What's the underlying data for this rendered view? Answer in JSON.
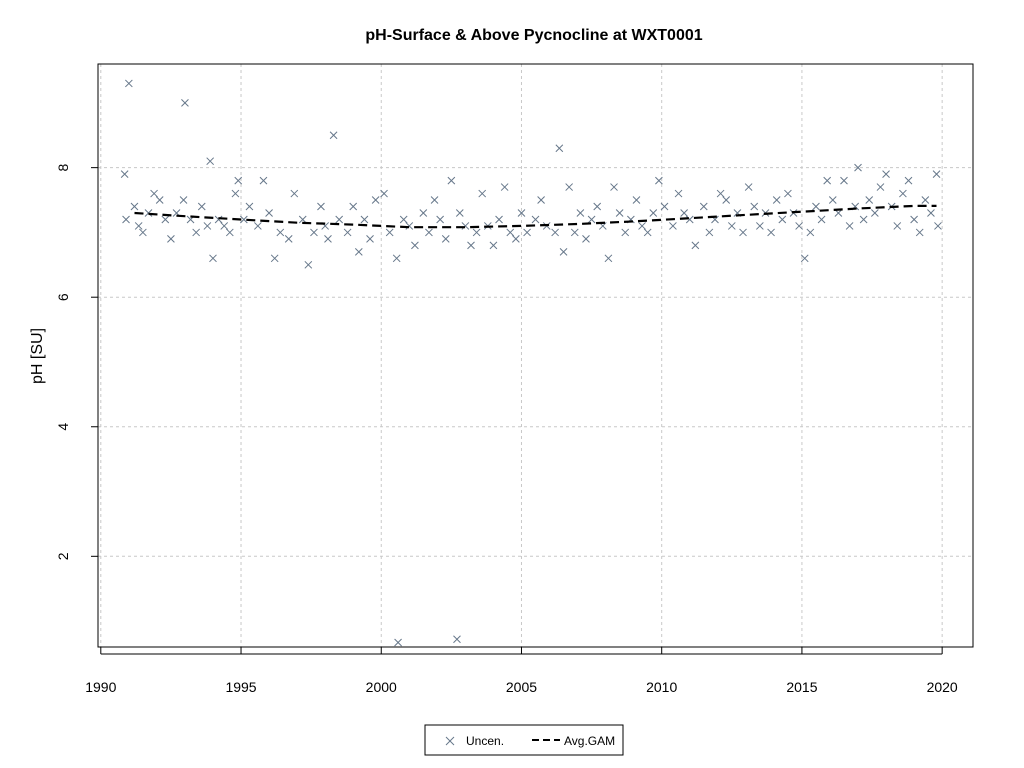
{
  "chart_data": {
    "type": "scatter",
    "title": "pH-Surface & Above Pycnocline at WXT0001",
    "xlabel": "",
    "ylabel": "pH [SU]",
    "xlim": [
      1989.9,
      2021.1
    ],
    "ylim": [
      0.6,
      9.6
    ],
    "x_ticks": [
      1990,
      1995,
      2000,
      2005,
      2010,
      2015,
      2020
    ],
    "y_ticks": [
      2,
      4,
      6,
      8
    ],
    "grid": true,
    "legend_position": "bottom-center",
    "colors": {
      "points": "#66778a",
      "gam": "#000000",
      "grid": "#c8c8c8"
    },
    "series": [
      {
        "name": "Uncen.",
        "marker": "x",
        "x": [
          1990.85,
          1990.9,
          1991.0,
          1991.2,
          1991.35,
          1991.5,
          1991.7,
          1991.9,
          1992.1,
          1992.3,
          1992.5,
          1992.7,
          1992.95,
          1993.0,
          1993.2,
          1993.4,
          1993.6,
          1993.8,
          1993.9,
          1994.0,
          1994.2,
          1994.4,
          1994.6,
          1994.8,
          1994.9,
          1995.1,
          1995.3,
          1995.6,
          1995.8,
          1996.0,
          1996.2,
          1996.4,
          1996.7,
          1996.9,
          1997.2,
          1997.4,
          1997.6,
          1997.85,
          1998.0,
          1998.1,
          1998.3,
          1998.5,
          1998.8,
          1999.0,
          1999.2,
          1999.4,
          1999.6,
          1999.8,
          2000.1,
          2000.3,
          2000.55,
          2000.6,
          2000.8,
          2001.0,
          2001.2,
          2001.5,
          2001.7,
          2001.9,
          2002.1,
          2002.3,
          2002.5,
          2002.7,
          2002.8,
          2003.0,
          2003.2,
          2003.4,
          2003.6,
          2003.8,
          2004.0,
          2004.2,
          2004.4,
          2004.6,
          2004.8,
          2005.0,
          2005.2,
          2005.5,
          2005.7,
          2005.9,
          2006.2,
          2006.35,
          2006.5,
          2006.7,
          2006.9,
          2007.1,
          2007.3,
          2007.5,
          2007.7,
          2007.9,
          2008.1,
          2008.3,
          2008.5,
          2008.7,
          2008.9,
          2009.1,
          2009.3,
          2009.5,
          2009.7,
          2009.9,
          2010.1,
          2010.4,
          2010.6,
          2010.8,
          2011.0,
          2011.2,
          2011.5,
          2011.7,
          2011.9,
          2012.1,
          2012.3,
          2012.5,
          2012.7,
          2012.9,
          2013.1,
          2013.3,
          2013.5,
          2013.7,
          2013.9,
          2014.1,
          2014.3,
          2014.5,
          2014.7,
          2014.9,
          2015.1,
          2015.3,
          2015.5,
          2015.7,
          2015.9,
          2016.1,
          2016.3,
          2016.5,
          2016.7,
          2016.9,
          2017.0,
          2017.2,
          2017.4,
          2017.6,
          2017.8,
          2018.0,
          2018.2,
          2018.4,
          2018.6,
          2018.8,
          2019.0,
          2019.2,
          2019.4,
          2019.6,
          2019.8,
          2019.85
        ],
        "y": [
          7.9,
          7.2,
          9.3,
          7.4,
          7.1,
          7.0,
          7.3,
          7.6,
          7.5,
          7.2,
          6.9,
          7.3,
          7.5,
          9.0,
          7.2,
          7.0,
          7.4,
          7.1,
          8.1,
          6.6,
          7.2,
          7.1,
          7.0,
          7.6,
          7.8,
          7.2,
          7.4,
          7.1,
          7.8,
          7.3,
          6.6,
          7.0,
          6.9,
          7.6,
          7.2,
          6.5,
          7.0,
          7.4,
          7.1,
          6.9,
          8.5,
          7.2,
          7.0,
          7.4,
          6.7,
          7.2,
          6.9,
          7.5,
          7.6,
          7.0,
          6.6,
          0.67,
          7.2,
          7.1,
          6.8,
          7.3,
          7.0,
          7.5,
          7.2,
          6.9,
          7.8,
          0.72,
          7.3,
          7.1,
          6.8,
          7.0,
          7.6,
          7.1,
          6.8,
          7.2,
          7.7,
          7.0,
          6.9,
          7.3,
          7.0,
          7.2,
          7.5,
          7.1,
          7.0,
          8.3,
          6.7,
          7.7,
          7.0,
          7.3,
          6.9,
          7.2,
          7.4,
          7.1,
          6.6,
          7.7,
          7.3,
          7.0,
          7.2,
          7.5,
          7.1,
          7.0,
          7.3,
          7.8,
          7.4,
          7.1,
          7.6,
          7.3,
          7.2,
          6.8,
          7.4,
          7.0,
          7.2,
          7.6,
          7.5,
          7.1,
          7.3,
          7.0,
          7.7,
          7.4,
          7.1,
          7.3,
          7.0,
          7.5,
          7.2,
          7.6,
          7.3,
          7.1,
          6.6,
          7.0,
          7.4,
          7.2,
          7.8,
          7.5,
          7.3,
          7.8,
          7.1,
          7.4,
          8.0,
          7.2,
          7.5,
          7.3,
          7.7,
          7.9,
          7.4,
          7.1,
          7.6,
          7.8,
          7.2,
          7.0,
          7.5,
          7.3,
          7.9,
          7.1
        ]
      },
      {
        "name": "Avg.GAM",
        "line": "dashed",
        "x": [
          1991.2,
          1993.0,
          1995.0,
          1997.0,
          1999.0,
          2001.0,
          2003.0,
          2005.0,
          2007.0,
          2009.0,
          2011.0,
          2013.0,
          2015.0,
          2017.0,
          2019.0,
          2019.8
        ],
        "y": [
          7.3,
          7.25,
          7.2,
          7.15,
          7.12,
          7.08,
          7.08,
          7.1,
          7.13,
          7.17,
          7.22,
          7.27,
          7.32,
          7.37,
          7.41,
          7.41
        ]
      }
    ]
  }
}
